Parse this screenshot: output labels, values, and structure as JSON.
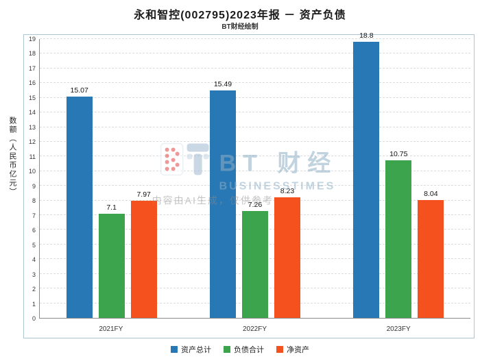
{
  "title": "永和智控(002795)2023年报 － 资产负债",
  "subtitle": "BT财经绘制",
  "watermark": {
    "logo_text": "BT 财经",
    "logo_sub": "BUSINESSTIMES",
    "ai_note": "内容由AI生成，仅供参考"
  },
  "chart_data": {
    "type": "bar",
    "title": "永和智控(002795)2023年报 － 资产负债",
    "subtitle": "BT财经绘制",
    "categories": [
      "2021FY",
      "2022FY",
      "2023FY"
    ],
    "series": [
      {
        "name": "资产总计",
        "color": "#2878B5",
        "values": [
          15.07,
          15.49,
          18.8
        ]
      },
      {
        "name": "负债合计",
        "color": "#3DA44E",
        "values": [
          7.1,
          7.26,
          10.75
        ]
      },
      {
        "name": "净资产",
        "color": "#F4511E",
        "values": [
          7.97,
          8.23,
          8.04
        ]
      }
    ],
    "xlabel": "",
    "ylabel": "数额（人民币亿元）",
    "ylim": [
      0,
      19
    ],
    "ytick_step": 1,
    "grid": true,
    "grid_style": "dashed",
    "legend_position": "bottom",
    "frame_border_color": "#aac4d4"
  }
}
